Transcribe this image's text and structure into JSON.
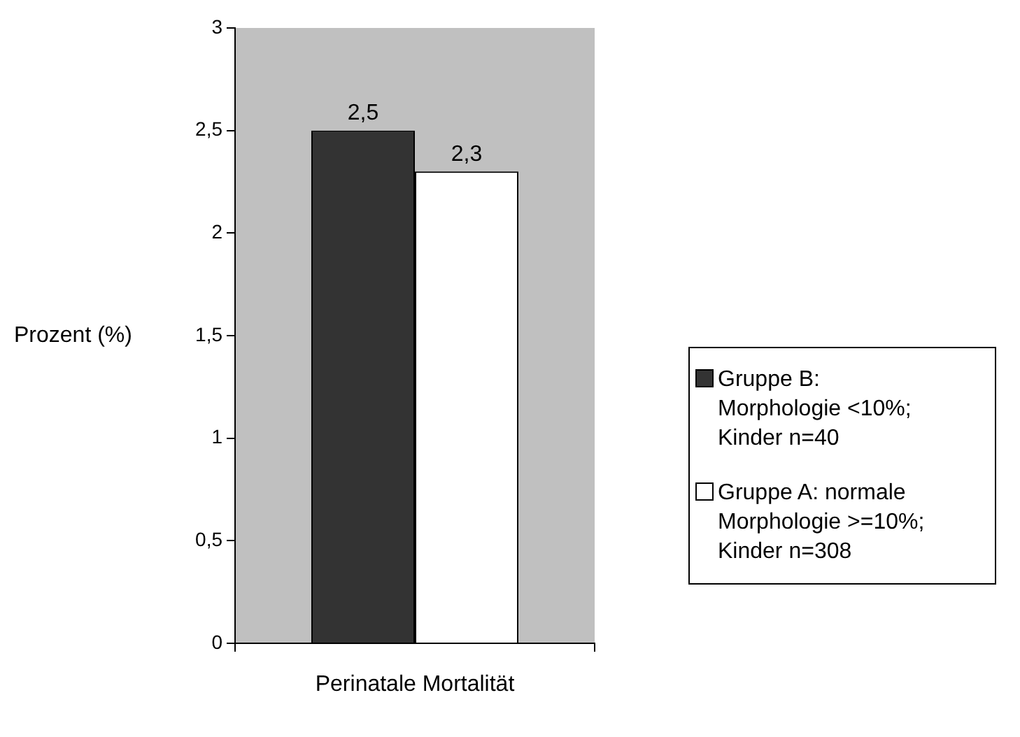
{
  "chart_data": {
    "type": "bar",
    "ylabel": "Prozent (%)",
    "categories": [
      "Perinatale Mortalität"
    ],
    "series": [
      {
        "name": "Gruppe B: Morphologie <10%; Kinder n=40",
        "color": "#333333",
        "values": [
          2.5
        ],
        "value_labels": [
          "2,5"
        ]
      },
      {
        "name": "Gruppe A: normale Morphologie >=10%; Kinder n=308",
        "color": "#ffffff",
        "values": [
          2.3
        ],
        "value_labels": [
          "2,3"
        ]
      }
    ],
    "ylim": [
      0,
      3
    ],
    "yticks": [
      0,
      {
        "value": 0.5,
        "label": "0,5"
      },
      1,
      {
        "value": 1.5,
        "label": "1,5"
      },
      2,
      {
        "value": 2.5,
        "label": "2,5"
      },
      3
    ],
    "grid": false,
    "legend": "right"
  }
}
